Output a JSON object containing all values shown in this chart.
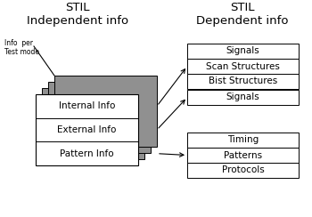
{
  "title_left": "STIL\nIndependent info",
  "title_right": "STIL\nDependent info",
  "left_boxes": [
    "Internal Info",
    "External Info",
    "Pattern Info"
  ],
  "right_group1": [
    "Signals",
    "Scan Structures",
    "Bist Structures"
  ],
  "right_group2": [
    "Signals"
  ],
  "right_group3": [
    "Timing",
    "Patterns",
    "Protocols"
  ],
  "info_label": "Info  per\nTest mode",
  "bg_color": "#ffffff",
  "box_face": "#ffffff",
  "box_edge": "#000000",
  "shadow_color": "#909090",
  "arrow_color": "#000000",
  "text_color": "#000000",
  "font_size": 7.5,
  "title_font_size": 9.5
}
